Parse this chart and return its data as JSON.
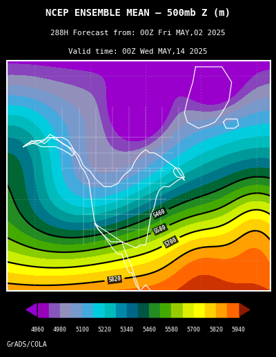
{
  "title_line1": "NCEP ENSEMBLE MEAN – 500mb Z (m)",
  "title_line2": "288H Forecast from: 00Z Fri MAY,02 2025",
  "title_line3": "Valid time: 00Z Wed MAY,14 2025",
  "credit": "GrADS/COLA",
  "figsize": [
    4.0,
    5.18
  ],
  "dpi": 100,
  "map_xlim": [
    -180,
    10
  ],
  "map_ylim": [
    10,
    85
  ],
  "colorbar_labels": [
    4860,
    4980,
    5100,
    5220,
    5340,
    5460,
    5580,
    5700,
    5820,
    5940
  ],
  "fill_levels": [
    4860,
    4920,
    4980,
    5040,
    5100,
    5160,
    5220,
    5280,
    5340,
    5400,
    5460,
    5520,
    5580,
    5640,
    5700,
    5760,
    5820,
    5880,
    5940,
    6000
  ],
  "fill_colors": [
    "#9400D3",
    "#9B00CC",
    "#8050B0",
    "#7070C0",
    "#5090D0",
    "#00C0E0",
    "#00CCCC",
    "#0090B0",
    "#005090",
    "#006400",
    "#228B22",
    "#44AA22",
    "#88CC00",
    "#CCEE00",
    "#FFFF00",
    "#FFD700",
    "#FFA500",
    "#FF7700",
    "#CC4400",
    "#993300"
  ],
  "contour_levels": [
    5460,
    5580,
    5700,
    5820
  ],
  "grid_lats": [
    20,
    40,
    60,
    80
  ],
  "grid_lons": [
    -160,
    -120,
    -80,
    -40,
    0
  ],
  "bg_color": "#000000",
  "map_frame_color": "#FFFFFF",
  "contour_color": "#000000",
  "grid_color": "#AAAAAA",
  "coast_color": "#FFFFFF",
  "colorbar_tip_left": "#9400D3",
  "colorbar_tip_right": "#8B1A00"
}
